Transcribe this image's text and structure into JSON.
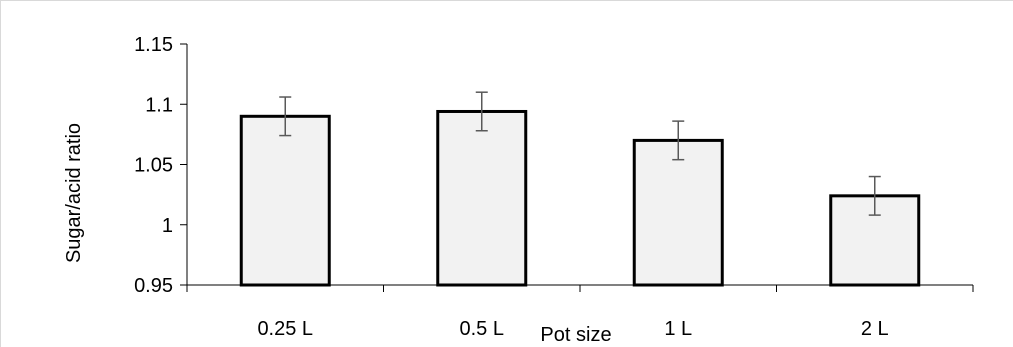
{
  "chart_data": {
    "type": "bar",
    "title": "",
    "xlabel": "Pot size",
    "ylabel": "Sugar/acid ratio",
    "categories": [
      "0.25 L",
      "0.5 L",
      "1 L",
      "2 L"
    ],
    "values": [
      1.09,
      1.094,
      1.07,
      1.024
    ],
    "errors": [
      0.016,
      0.016,
      0.016,
      0.016
    ],
    "ylim": [
      0.95,
      1.15
    ],
    "yticks": [
      0.95,
      1,
      1.05,
      1.1,
      1.15
    ],
    "ytick_labels": [
      "0.95",
      "1",
      "1.05",
      "1.1",
      "1.15"
    ],
    "grid": false,
    "legend": "none",
    "colors": {
      "bar_fill": "#f2f2f2",
      "bar_stroke": "#000000",
      "axis": "#000000",
      "error_bar": "#595959"
    }
  }
}
